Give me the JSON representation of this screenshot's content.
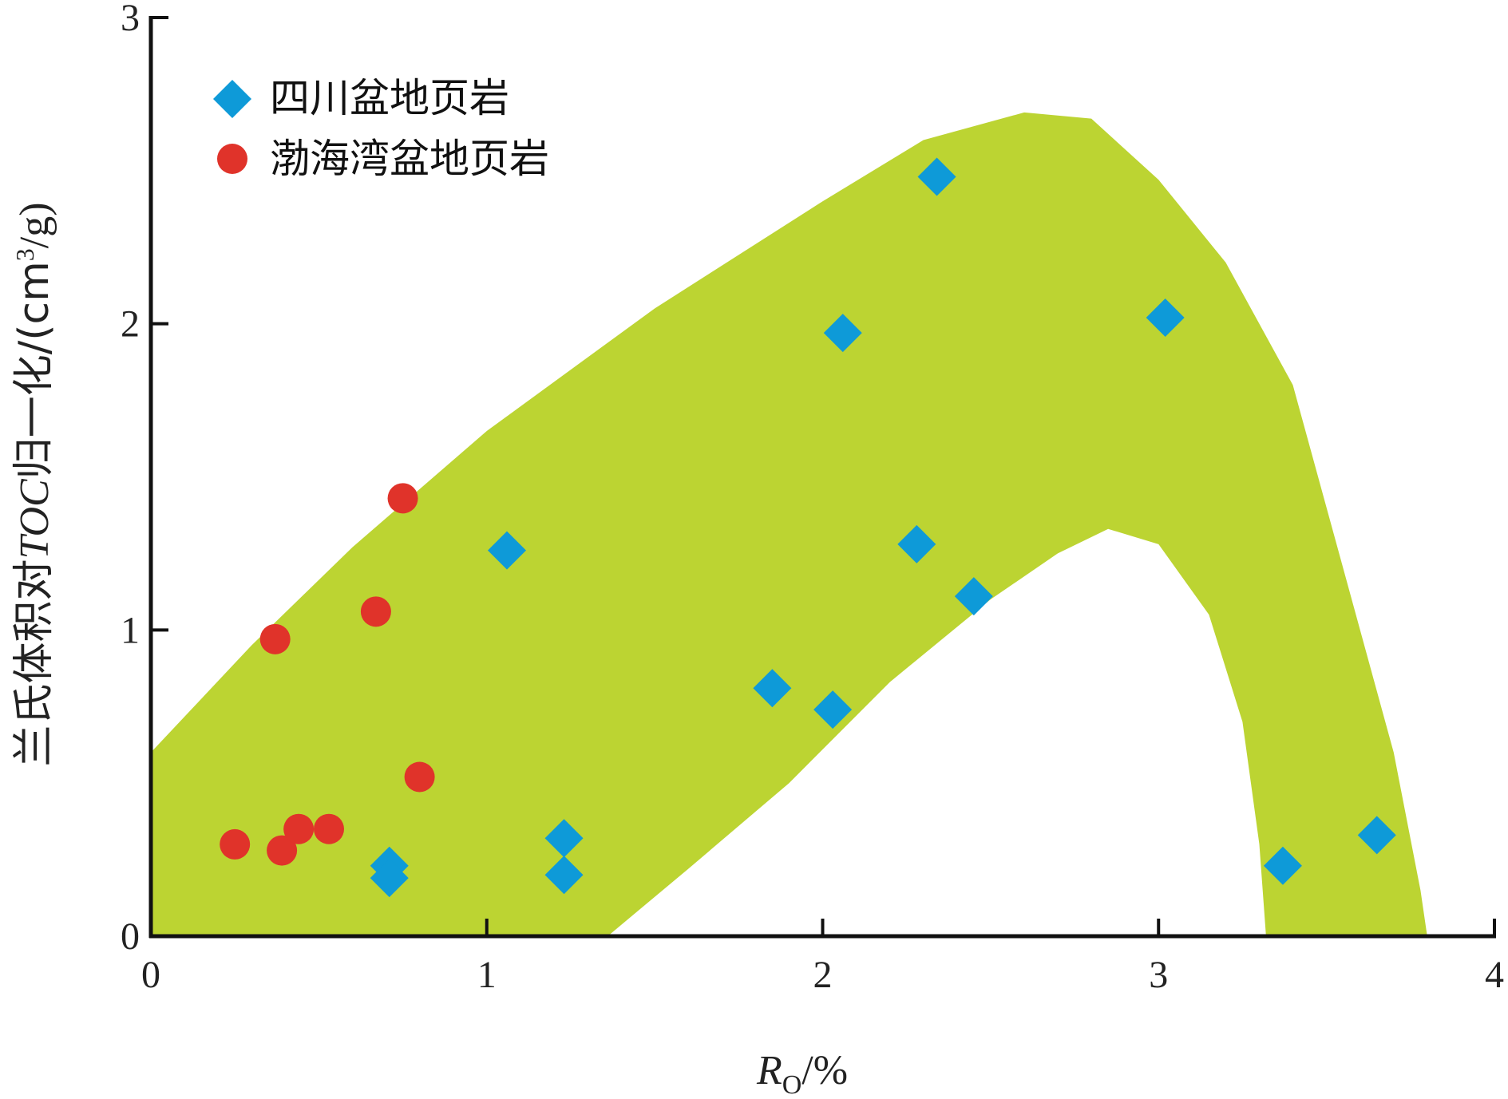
{
  "chart_data": {
    "type": "scatter",
    "title": "",
    "xlabel": {
      "main": "R",
      "sub": "O",
      "tail": "/%"
    },
    "ylabel": {
      "pre": "兰氏体积对",
      "italic": "TOC",
      "mid": "归一化/(cm",
      "sup": "3",
      "post": "/g)"
    },
    "xlim": [
      0,
      4
    ],
    "ylim": [
      0,
      3
    ],
    "xticks": [
      "0",
      "1",
      "2",
      "3",
      "4"
    ],
    "yticks": [
      "0",
      "1",
      "2",
      "3"
    ],
    "grid": false,
    "legend_position": "top-left",
    "band_color": "#bcd432",
    "series": [
      {
        "name": "四川盆地页岩",
        "marker": "diamond",
        "color": "#0e9ad8",
        "points": [
          [
            0.71,
            0.23
          ],
          [
            0.71,
            0.19
          ],
          [
            1.06,
            1.26
          ],
          [
            1.23,
            0.32
          ],
          [
            1.23,
            0.2
          ],
          [
            1.85,
            0.81
          ],
          [
            2.03,
            0.74
          ],
          [
            2.06,
            1.97
          ],
          [
            2.28,
            1.28
          ],
          [
            2.34,
            2.48
          ],
          [
            2.45,
            1.11
          ],
          [
            3.02,
            2.02
          ],
          [
            3.37,
            0.23
          ],
          [
            3.65,
            0.33
          ]
        ]
      },
      {
        "name": "渤海湾盆地页岩",
        "marker": "circle",
        "color": "#e0332a",
        "points": [
          [
            0.25,
            0.3
          ],
          [
            0.37,
            0.97
          ],
          [
            0.39,
            0.28
          ],
          [
            0.44,
            0.35
          ],
          [
            0.53,
            0.35
          ],
          [
            0.67,
            1.06
          ],
          [
            0.75,
            1.43
          ],
          [
            0.8,
            0.52
          ]
        ]
      }
    ]
  }
}
